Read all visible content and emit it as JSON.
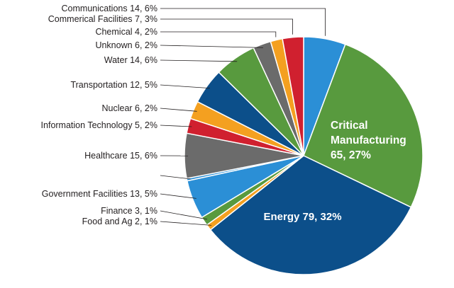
{
  "chart_data": {
    "type": "pie",
    "title": "",
    "slices": [
      {
        "label": "Communications 14, 6%",
        "value": 14,
        "percent": 6,
        "color": "#2b8fd6"
      },
      {
        "label": "Critical Manufacturing 65, 27%",
        "label_lines": [
          "Critical",
          "Manufacturing",
          "65, 27%"
        ],
        "value": 65,
        "percent": 27,
        "color": "#589a3e"
      },
      {
        "label": "Energy 79, 32%",
        "value": 79,
        "percent": 32,
        "color": "#0c4f8a"
      },
      {
        "label": "Food and Ag 2, 1%",
        "value": 2,
        "percent": 1,
        "color": "#f4a020"
      },
      {
        "label": "Finance 3, 1%",
        "value": 3,
        "percent": 1,
        "color": "#589a3e"
      },
      {
        "label": "Government Facilities 13, 5%",
        "value": 13,
        "percent": 5,
        "color": "#2b8fd6"
      },
      {
        "label": "",
        "value": 0,
        "percent": 0,
        "color": "#2b8fd6"
      },
      {
        "label": "Healthcare 15, 6%",
        "value": 15,
        "percent": 6,
        "color": "#6b6b6b"
      },
      {
        "label": "Information Technology 5, 2%",
        "value": 5,
        "percent": 2,
        "color": "#d0202f"
      },
      {
        "label": "Nuclear 6, 2%",
        "value": 6,
        "percent": 2,
        "color": "#f4a020"
      },
      {
        "label": "Transportation 12, 5%",
        "value": 12,
        "percent": 5,
        "color": "#0c4f8a"
      },
      {
        "label": "Water 14, 6%",
        "value": 14,
        "percent": 6,
        "color": "#589a3e"
      },
      {
        "label": "Unknown 6, 2%",
        "value": 6,
        "percent": 2,
        "color": "#6b6b6b"
      },
      {
        "label": "Chemical 4, 2%",
        "value": 4,
        "percent": 2,
        "color": "#f4a020"
      },
      {
        "label": "Commerical Facilities 7, 3%",
        "value": 7,
        "percent": 3,
        "color": "#d0202f"
      }
    ]
  }
}
